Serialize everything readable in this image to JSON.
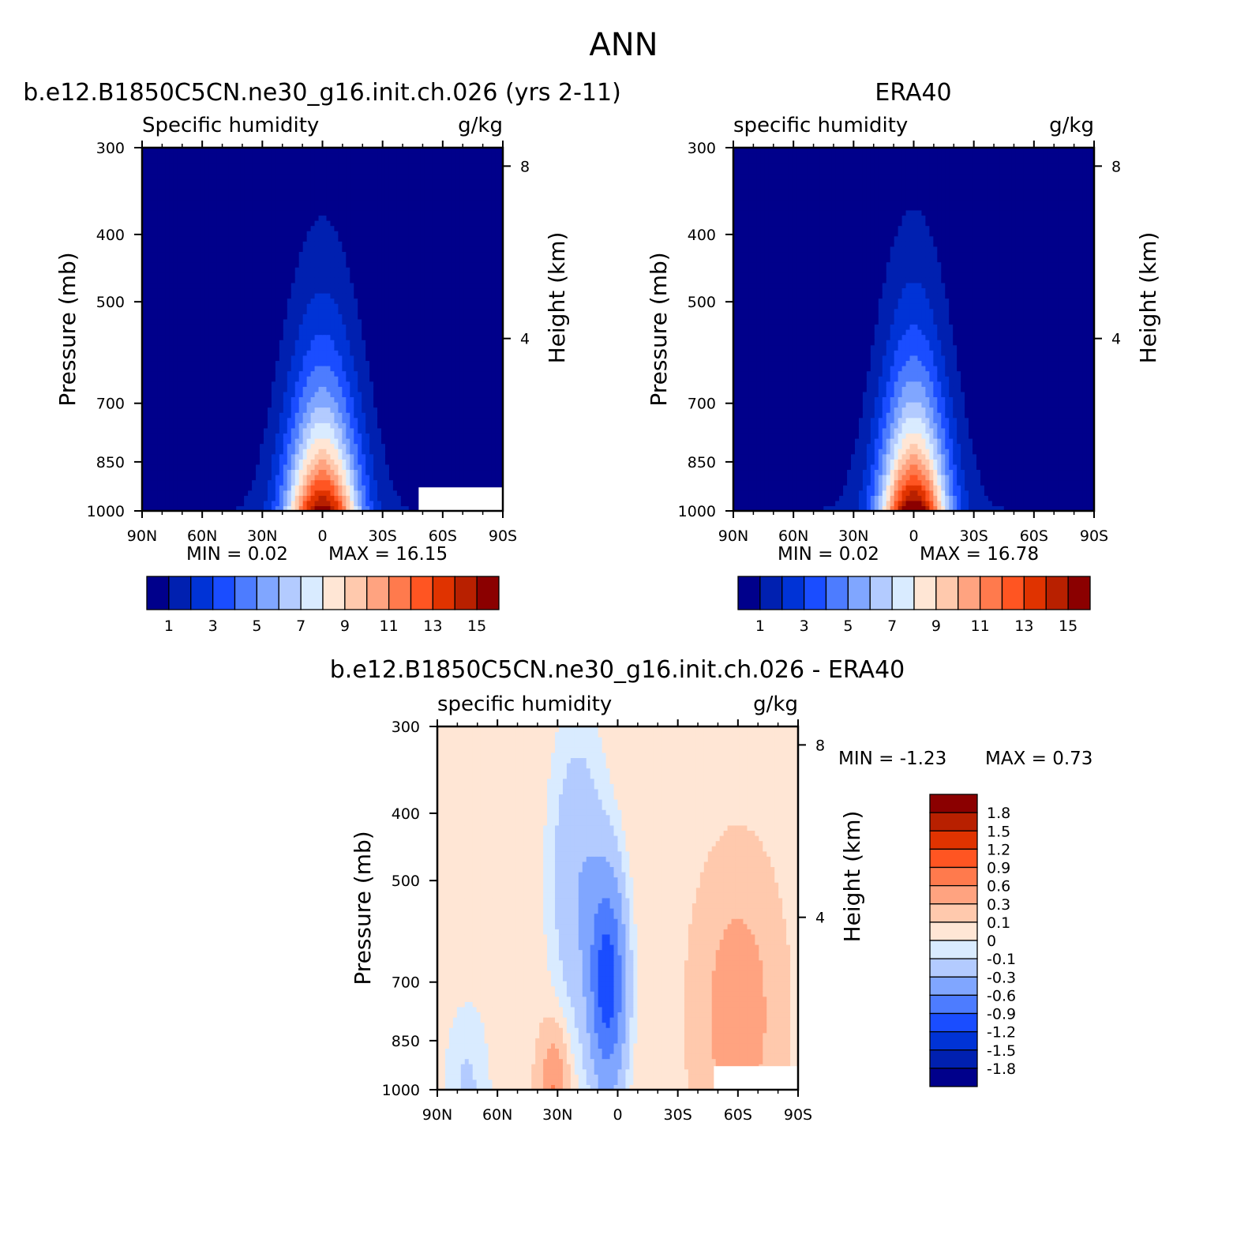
{
  "page_title": "ANN",
  "chart_data": [
    {
      "type": "heatmap",
      "title": "b.e12.B1850C5CN.ne30_g16.init.ch.026 (yrs 2-11)",
      "left_label": "Specific humidity",
      "units": "g/kg",
      "ylabel": "Pressure (mb)",
      "ylabel_right": "Height (km)",
      "xticks": [
        "90N",
        "60N",
        "30N",
        "0",
        "30S",
        "60S",
        "90S"
      ],
      "yticks": [
        "300",
        "400",
        "500",
        "700",
        "850",
        "1000"
      ],
      "yticks_right": [
        "8",
        "4"
      ],
      "ylim": [
        1000,
        300
      ],
      "y_scale": "log",
      "min_text": "MIN = 0.02",
      "max_text": "MAX = 16.15",
      "min": 0.02,
      "max": 16.15,
      "peak_lat": 0,
      "sigma_lat": 18,
      "scale_height_km": 2.45,
      "colorbar": {
        "orientation": "horizontal",
        "levels": [
          1,
          2,
          3,
          4,
          5,
          6,
          7,
          8,
          9,
          10,
          11,
          12,
          13,
          14,
          15
        ],
        "labels": [
          "1",
          "3",
          "5",
          "7",
          "9",
          "11",
          "13",
          "15"
        ]
      },
      "missing_region_note": "white (no data) region near surface at high southern latitudes"
    },
    {
      "type": "heatmap",
      "title": "ERA40",
      "left_label": "specific humidity",
      "units": "g/kg",
      "ylabel": "Pressure (mb)",
      "ylabel_right": "Height (km)",
      "xticks": [
        "90N",
        "60N",
        "30N",
        "0",
        "30S",
        "60S",
        "90S"
      ],
      "yticks": [
        "300",
        "400",
        "500",
        "700",
        "850",
        "1000"
      ],
      "yticks_right": [
        "8",
        "4"
      ],
      "ylim": [
        1000,
        300
      ],
      "y_scale": "log",
      "min_text": "MIN = 0.02",
      "max_text": "MAX = 16.78",
      "min": 0.02,
      "max": 16.78,
      "peak_lat": 0,
      "sigma_lat": 17,
      "scale_height_km": 2.5,
      "colorbar": {
        "orientation": "horizontal",
        "levels": [
          1,
          2,
          3,
          4,
          5,
          6,
          7,
          8,
          9,
          10,
          11,
          12,
          13,
          14,
          15
        ],
        "labels": [
          "1",
          "3",
          "5",
          "7",
          "9",
          "11",
          "13",
          "15"
        ]
      }
    },
    {
      "type": "heatmap",
      "title": "b.e12.B1850C5CN.ne30_g16.init.ch.026 - ERA40",
      "left_label": "specific humidity",
      "units": "g/kg",
      "ylabel": "Pressure (mb)",
      "ylabel_right": "Height (km)",
      "xticks": [
        "90N",
        "60N",
        "30N",
        "0",
        "30S",
        "60S",
        "90S"
      ],
      "yticks": [
        "300",
        "400",
        "500",
        "700",
        "850",
        "1000"
      ],
      "yticks_right": [
        "8",
        "4"
      ],
      "ylim": [
        1000,
        300
      ],
      "y_scale": "log",
      "min_text": "MIN = -1.23",
      "max_text": "MAX = 0.73",
      "min": -1.23,
      "max": 0.73,
      "colorbar": {
        "orientation": "vertical",
        "levels": [
          -1.8,
          -1.5,
          -1.2,
          -0.9,
          -0.6,
          -0.3,
          -0.1,
          0,
          0.1,
          0.3,
          0.6,
          0.9,
          1.2,
          1.5,
          1.8
        ],
        "labels": [
          "1.8",
          "1.5",
          "1.2",
          "0.9",
          "0.6",
          "0.3",
          "0.1",
          "0",
          "-0.1",
          "-0.3",
          "-0.6",
          "-0.9",
          "-1.2",
          "-1.5",
          "-1.8"
        ]
      },
      "missing_region_note": "white (no data) region near surface at high southern latitudes"
    }
  ],
  "colors": {
    "abs_palette": [
      "#00008b",
      "#0020b0",
      "#0033d6",
      "#1a4dff",
      "#4d7cff",
      "#80a6ff",
      "#b3cbff",
      "#d9ebff",
      "#ffe6d5",
      "#ffc9ad",
      "#ffa380",
      "#ff7a4d",
      "#ff5522",
      "#e03300",
      "#b82000",
      "#8b0000"
    ],
    "diff_palette": [
      "#00008b",
      "#0020b0",
      "#0033d6",
      "#1a4dff",
      "#4d7cff",
      "#80a6ff",
      "#b3cbff",
      "#d9ebff",
      "#ffe6d5",
      "#ffc9ad",
      "#ffa380",
      "#ff7a4d",
      "#ff5522",
      "#e03300",
      "#b82000",
      "#8b0000"
    ]
  }
}
